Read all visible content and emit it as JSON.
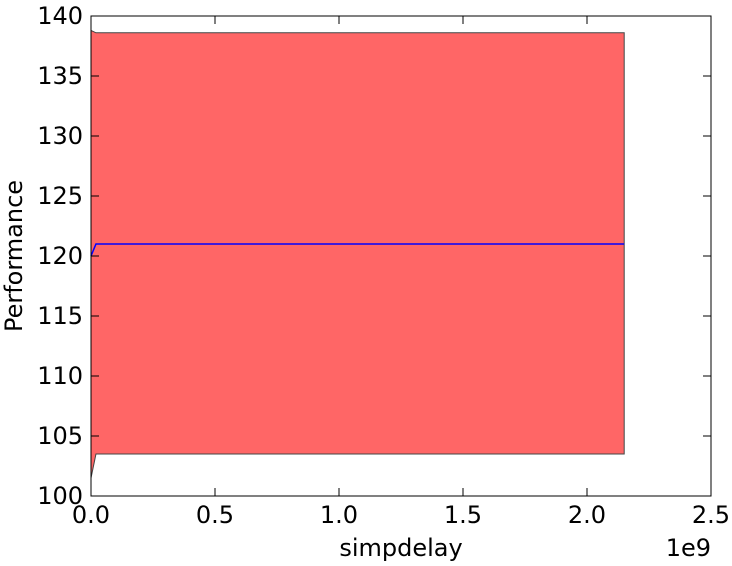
{
  "chart_data": {
    "type": "area",
    "xlabel": "simpdelay",
    "ylabel": "Performance",
    "x_offset_label": "1e9",
    "xlim": [
      0.0,
      2.5
    ],
    "ylim": [
      100,
      140
    ],
    "xticks": [
      "0.0",
      "0.5",
      "1.0",
      "1.5",
      "2.0",
      "2.5"
    ],
    "yticks": [
      "100",
      "105",
      "110",
      "115",
      "120",
      "125",
      "130",
      "135",
      "140"
    ],
    "grid": false,
    "series": [
      {
        "type": "line",
        "color": "#0000ff",
        "x": [
          0.0,
          0.02,
          2.1,
          2.15
        ],
        "y": [
          120.0,
          121.0,
          121.0,
          121.0
        ]
      }
    ],
    "band": {
      "color": "#ff6666",
      "edge_color": "#444444",
      "x": [
        0.0,
        0.02,
        2.1,
        2.15
      ],
      "upper": [
        138.8,
        138.6,
        138.6,
        138.6
      ],
      "lower": [
        101.5,
        103.5,
        103.5,
        103.5
      ]
    }
  }
}
